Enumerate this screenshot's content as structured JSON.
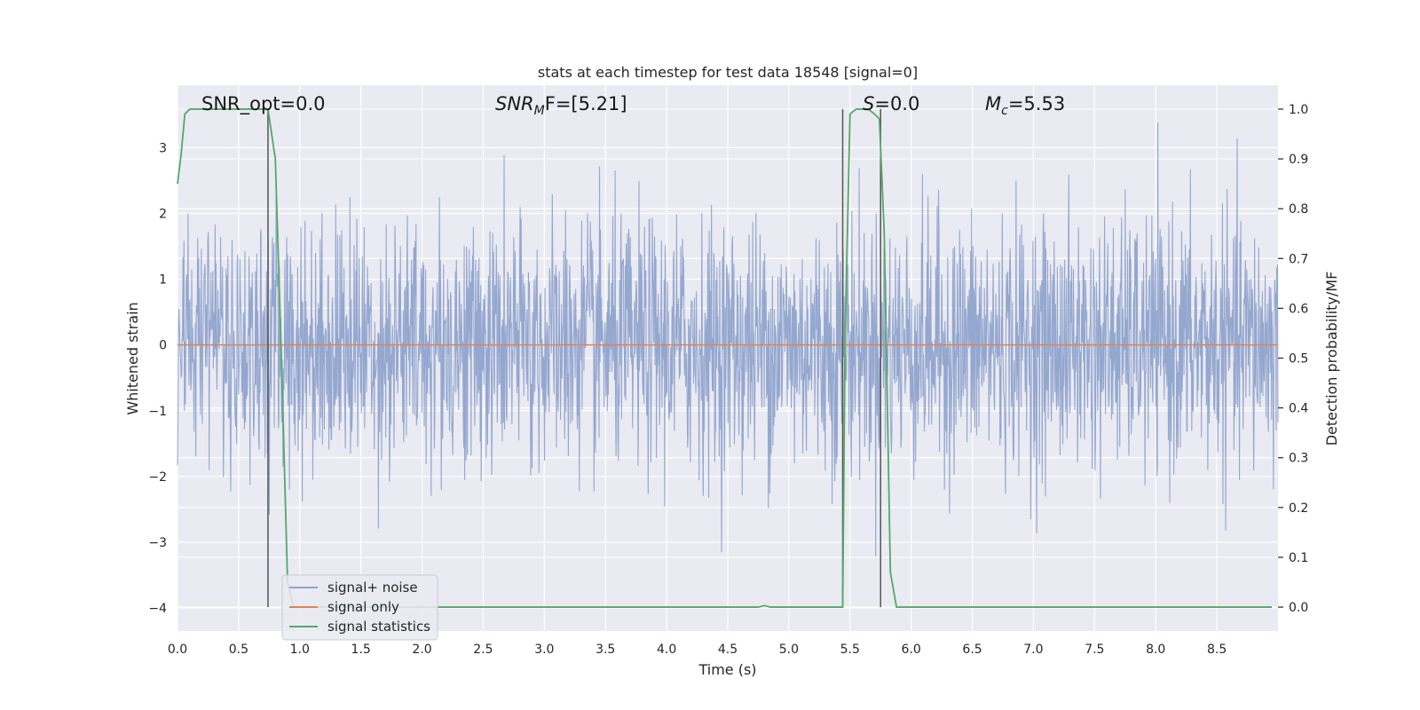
{
  "chart_data": {
    "type": "line",
    "title": "stats at each timestep for test data 18548 [signal=0]",
    "xlabel": "Time (s)",
    "ylabel_left": "Whitened strain",
    "ylabel_right": "Detection probability/MF",
    "xlim": [
      0.0,
      9.0
    ],
    "ylim_left": [
      -4.35,
      3.95
    ],
    "ylim_right": [
      -0.048,
      1.048
    ],
    "xticks": [
      0.0,
      0.5,
      1.0,
      1.5,
      2.0,
      2.5,
      3.0,
      3.5,
      4.0,
      4.5,
      5.0,
      5.5,
      6.0,
      6.5,
      7.0,
      7.5,
      8.0,
      8.5
    ],
    "xtick_labels": [
      "0.0",
      "0.5",
      "1.0",
      "1.5",
      "2.0",
      "2.5",
      "3.0",
      "3.5",
      "4.0",
      "4.5",
      "5.0",
      "5.5",
      "6.0",
      "6.5",
      "7.0",
      "7.5",
      "8.0",
      "8.5"
    ],
    "yticks_left": [
      -4,
      -3,
      -2,
      -1,
      0,
      1,
      2,
      3
    ],
    "ytick_labels_left": [
      "−4",
      "−3",
      "−2",
      "−1",
      "0",
      "1",
      "2",
      "3"
    ],
    "yticks_right": [
      0.0,
      0.1,
      0.2,
      0.3,
      0.4,
      0.5,
      0.6,
      0.7,
      0.8,
      0.9,
      1.0
    ],
    "ytick_labels_right": [
      "0.0",
      "0.1",
      "0.2",
      "0.3",
      "0.4",
      "0.5",
      "0.6",
      "0.7",
      "0.8",
      "0.9",
      "1.0"
    ],
    "grid": true,
    "legend_position": "lower-left",
    "annotations": {
      "snr_opt": "SNR_opt=0.0",
      "snr_mf_prefix": "SNR",
      "snr_mf_sub": "M",
      "snr_mf_suffix": "F=[5.21]",
      "s_prefix": "S",
      "s_suffix": "=0.0",
      "mc_prefix": "M",
      "mc_sub": "c",
      "mc_suffix": "=5.53"
    },
    "series": [
      {
        "name": "signal+ noise",
        "color": "#8fa3cc",
        "description_axis": "left",
        "t_start": 0.0,
        "t_end": 9.0,
        "approx_std": 0.95,
        "approx_range": [
          -3.35,
          3.6
        ]
      },
      {
        "name": "signal only",
        "color": "#dd8452",
        "description_axis": "left",
        "x": [
          0.0,
          9.0
        ],
        "y": [
          0.0,
          0.0
        ]
      },
      {
        "name": "signal statistics",
        "color": "#55a868",
        "description_axis": "right",
        "x": [
          0.0,
          0.03,
          0.06,
          0.1,
          0.2,
          0.4,
          0.6,
          0.68,
          0.74,
          0.8,
          0.85,
          0.9,
          0.95,
          1.0,
          2.0,
          3.0,
          4.0,
          4.7,
          4.75,
          4.8,
          4.85,
          5.0,
          5.3,
          5.44,
          5.46,
          5.5,
          5.55,
          5.65,
          5.7,
          5.74,
          5.78,
          5.83,
          5.88,
          6.5,
          7.5,
          8.5,
          8.95
        ],
        "y": [
          0.85,
          0.91,
          0.99,
          1.0,
          1.0,
          1.0,
          1.0,
          1.0,
          1.0,
          0.9,
          0.5,
          0.05,
          0.0,
          0.0,
          0.0,
          0.0,
          0.0,
          0.0,
          0.0,
          0.003,
          0.0,
          0.0,
          0.0,
          0.0,
          0.55,
          0.99,
          1.0,
          1.0,
          0.99,
          0.98,
          0.75,
          0.07,
          0.0,
          0.0,
          0.0,
          0.0,
          0.0
        ]
      }
    ],
    "vertical_markers": [
      {
        "x": 0.74,
        "color": "#555555"
      },
      {
        "x": 5.44,
        "color": "#555555"
      },
      {
        "x": 5.75,
        "color": "#555555"
      }
    ]
  }
}
